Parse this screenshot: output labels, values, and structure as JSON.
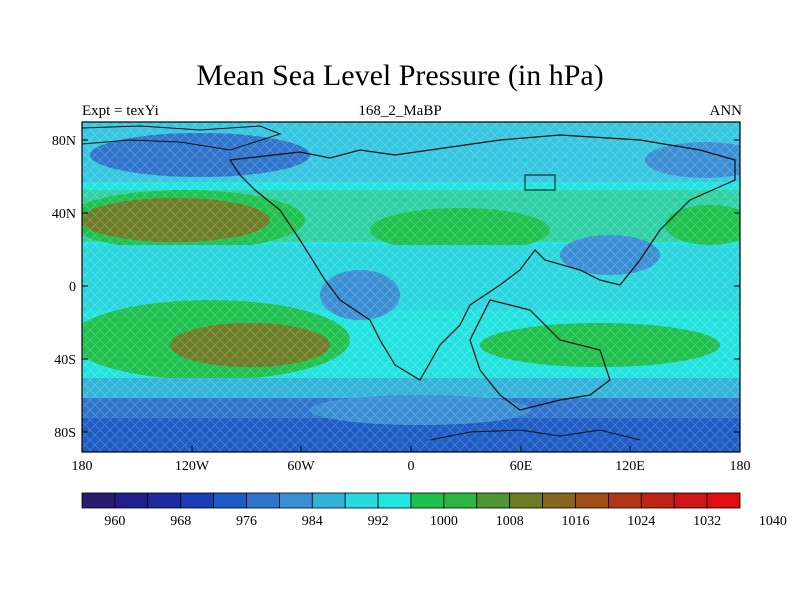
{
  "title": "Mean Sea Level Pressure (in hPa)",
  "subtitle_left": "Expt = texYi",
  "subtitle_center": "168_2_MaBP",
  "subtitle_right": "ANN",
  "map": {
    "lat_ticks": [
      "80N",
      "40N",
      "0",
      "40S",
      "80S"
    ],
    "lon_ticks": [
      "180",
      "120W",
      "60W",
      "0",
      "60E",
      "120E",
      "180"
    ]
  },
  "colorbar": {
    "colors": [
      "#2a1b6e",
      "#1f1e8a",
      "#1d2aa0",
      "#1a3cb4",
      "#1d5cc4",
      "#2f74cc",
      "#3a8fd4",
      "#32b4d9",
      "#28dbe0",
      "#21e7e0",
      "#1fc14e",
      "#2fb640",
      "#4d9633",
      "#6d7d26",
      "#89661d",
      "#9f4d17",
      "#b03617",
      "#bf2417",
      "#cf1515",
      "#e00f0f"
    ],
    "labels": [
      "960",
      "968",
      "976",
      "984",
      "992",
      "1000",
      "1008",
      "1016",
      "1024",
      "1032",
      "1040"
    ]
  }
}
